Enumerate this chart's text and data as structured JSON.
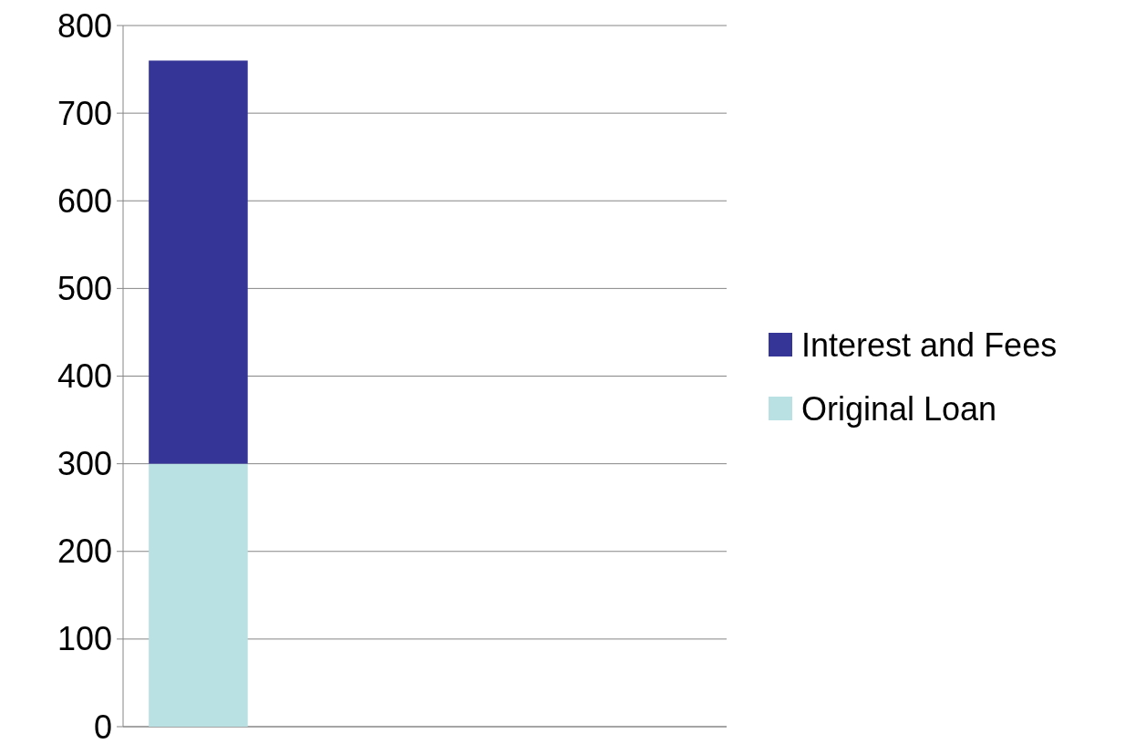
{
  "chart_data": {
    "type": "bar",
    "stacked": true,
    "categories": [
      null,
      null,
      null,
      null
    ],
    "series": [
      {
        "name": "Original Loan",
        "color": "#b9e0e3",
        "values": [
          300,
          null,
          null,
          null
        ]
      },
      {
        "name": "Interest and Fees",
        "color": "#353598",
        "values": [
          460,
          null,
          null,
          null
        ]
      }
    ],
    "ylim": [
      0,
      800
    ],
    "yticks": [
      0,
      100,
      200,
      300,
      400,
      500,
      600,
      700,
      800
    ],
    "grid": "y",
    "legend": "right"
  }
}
